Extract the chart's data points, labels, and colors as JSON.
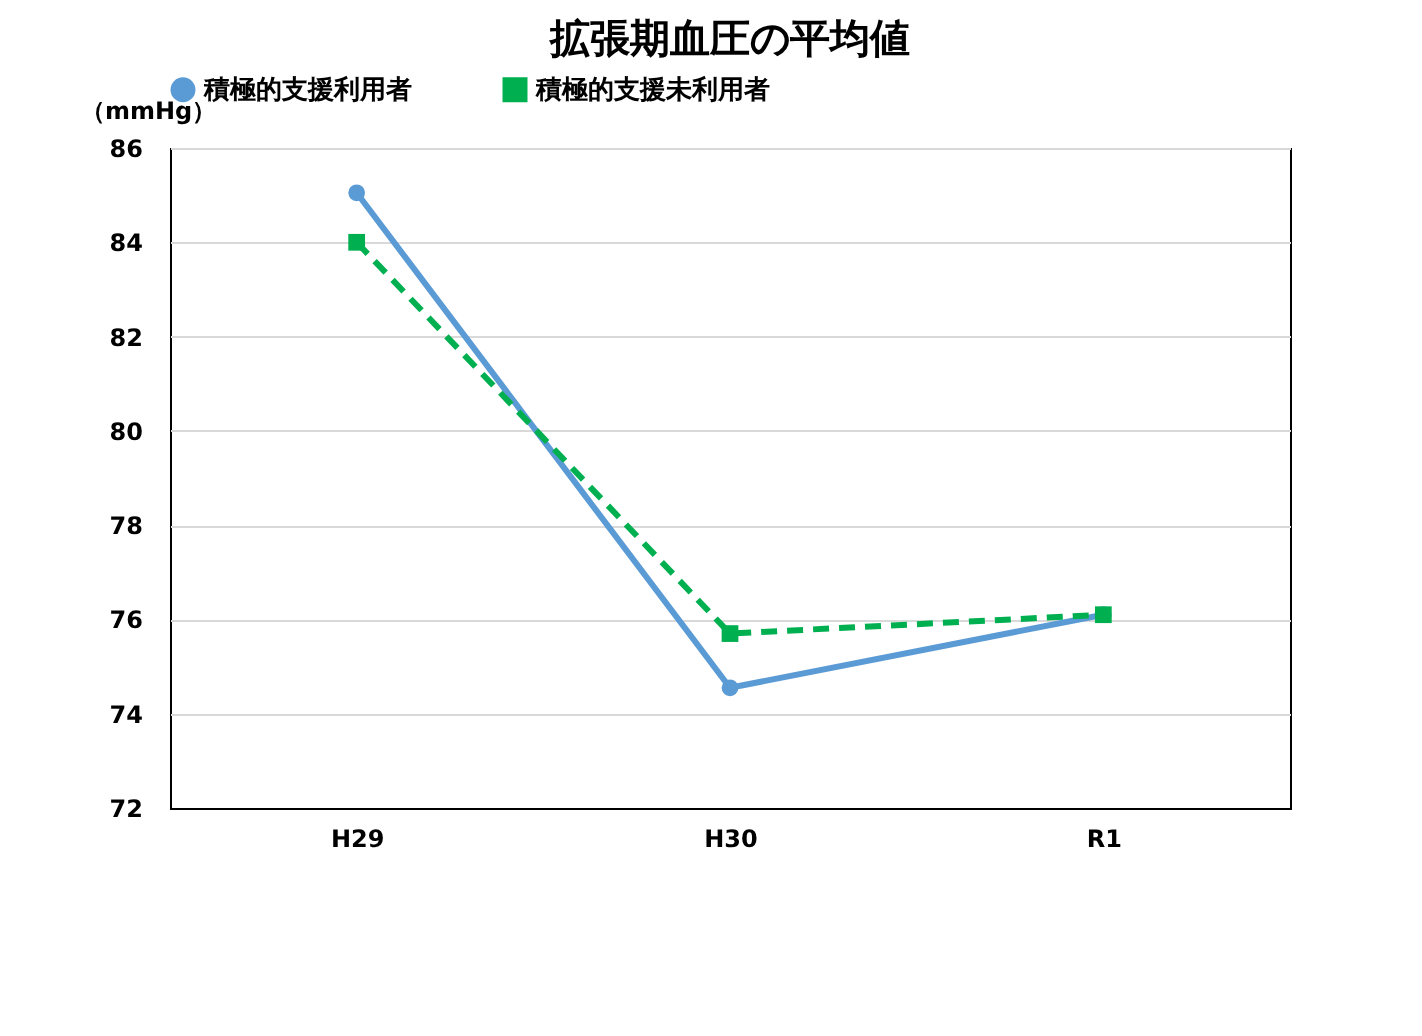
{
  "chart_data": {
    "type": "line",
    "title": "拡張期血圧の平均値",
    "ylabel": "（mmHg）",
    "categories": [
      "H29",
      "H30",
      "R1"
    ],
    "series": [
      {
        "name": "積極的支援利用者",
        "color": "#5b9bd5",
        "values": [
          85.05,
          74.55,
          76.1
        ],
        "marker": "circle",
        "line_style": "solid"
      },
      {
        "name": "積極的支援未利用者",
        "color": "#00b050",
        "values": [
          84.0,
          75.7,
          76.1
        ],
        "marker": "square",
        "line_style": "dashed"
      }
    ],
    "ylim": [
      72,
      86
    ],
    "yticks": [
      72,
      74,
      76,
      78,
      80,
      82,
      84,
      86
    ],
    "grid": "y",
    "legend": "top"
  }
}
